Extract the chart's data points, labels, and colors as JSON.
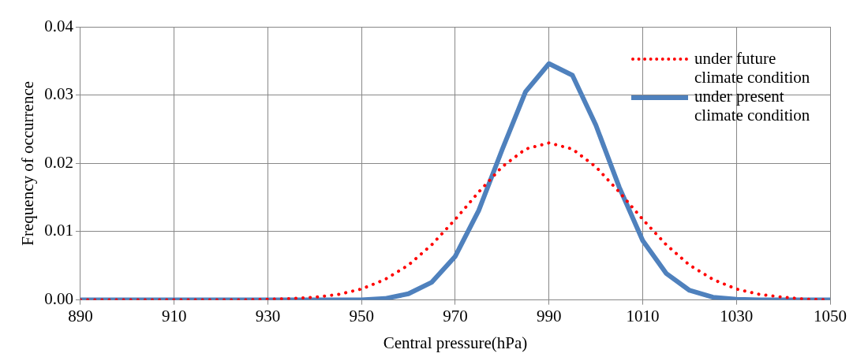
{
  "chart_data": {
    "type": "line",
    "xlabel": "Central pressure(hPa)",
    "ylabel": "Frequency of occurrence",
    "x": [
      890,
      895,
      900,
      905,
      910,
      915,
      920,
      925,
      930,
      935,
      940,
      945,
      950,
      955,
      960,
      965,
      970,
      975,
      980,
      985,
      990,
      995,
      1000,
      1005,
      1010,
      1015,
      1020,
      1025,
      1030,
      1035,
      1040,
      1045,
      1050
    ],
    "series": [
      {
        "name": "under future climate condition",
        "color": "#ff0000",
        "line_style": "dotted",
        "values": [
          0,
          0,
          0,
          0,
          0,
          0,
          0,
          0,
          0.0001,
          0.0002,
          0.0004,
          0.0008,
          0.0016,
          0.003,
          0.0051,
          0.0081,
          0.0118,
          0.0158,
          0.0195,
          0.0221,
          0.023,
          0.0221,
          0.0195,
          0.0158,
          0.0118,
          0.0081,
          0.0051,
          0.003,
          0.0016,
          0.0008,
          0.0004,
          0.0001,
          0
        ]
      },
      {
        "name": "under present climate condition",
        "color": "#4f81bd",
        "line_style": "solid",
        "values": [
          0,
          0,
          0,
          0,
          0,
          0,
          0,
          0,
          0,
          0,
          0,
          0,
          0,
          0.0002,
          0.0009,
          0.0026,
          0.0064,
          0.0131,
          0.022,
          0.0305,
          0.0346,
          0.0329,
          0.0256,
          0.0165,
          0.0087,
          0.0039,
          0.0014,
          0.0004,
          0.0001,
          0,
          0,
          0,
          0
        ]
      }
    ],
    "xlim": [
      890,
      1050
    ],
    "xticks": [
      890,
      910,
      930,
      950,
      970,
      990,
      1010,
      1030,
      1050
    ],
    "ylim": [
      0,
      0.04
    ],
    "yticks": [
      {
        "value": 0,
        "label": "0.00"
      },
      {
        "value": 0.01,
        "label": "0.01"
      },
      {
        "value": 0.02,
        "label": "0.02"
      },
      {
        "value": 0.03,
        "label": "0.03"
      },
      {
        "value": 0.04,
        "label": "0.04"
      }
    ],
    "grid": true,
    "legend": "top right",
    "marker": "none"
  }
}
